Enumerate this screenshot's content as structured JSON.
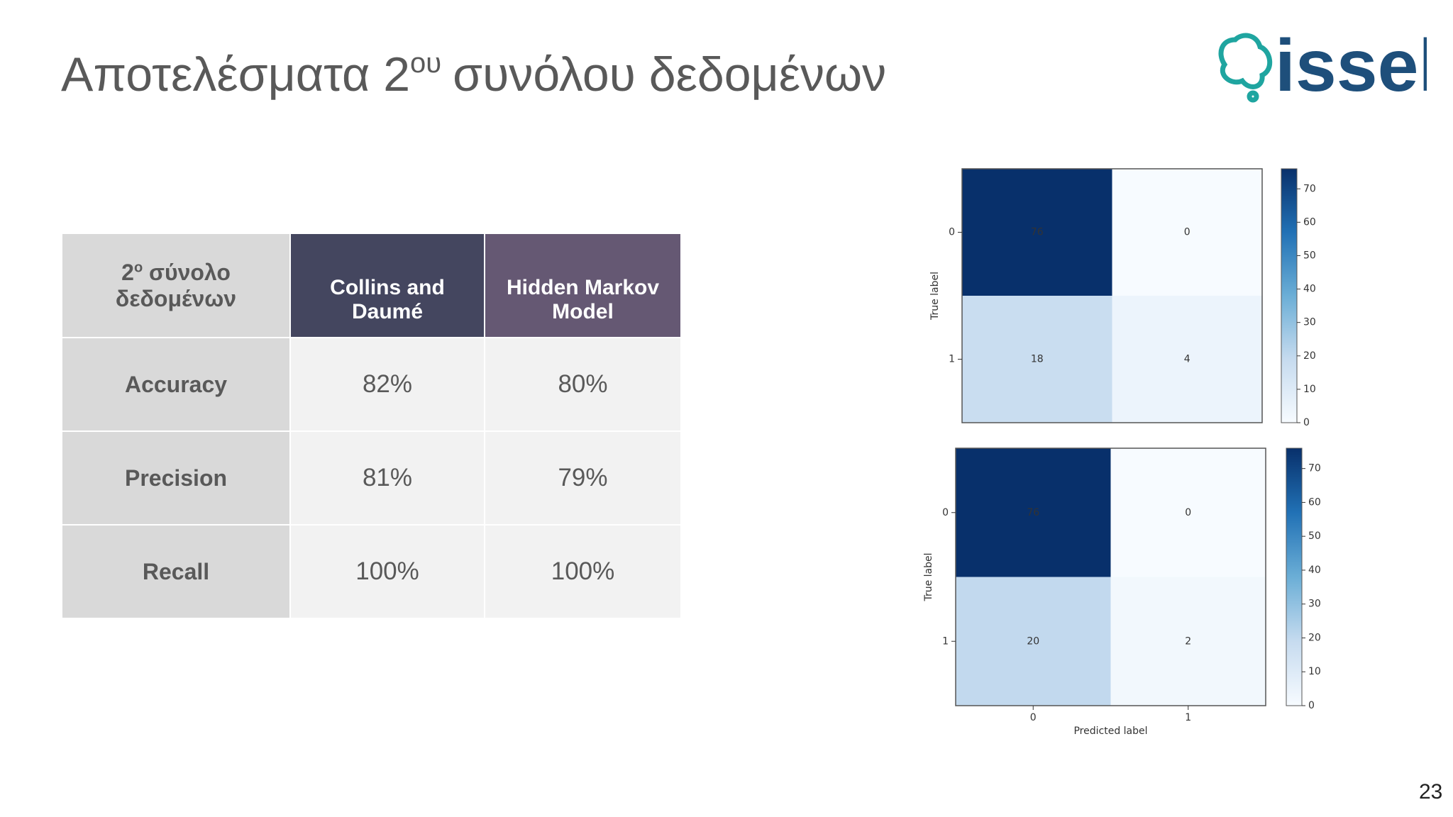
{
  "header": {
    "title_start": "Αποτελέσματα 2",
    "title_sup": "ου",
    "title_end": "συνόλου δεδομένων",
    "logo": "issel"
  },
  "table": {
    "corner": {
      "number": "2",
      "sup": "ο",
      "text": "σύνολο δεδομένων"
    },
    "columns": [
      "Collins and Daumé",
      "Hidden Markov Model"
    ],
    "rows": [
      [
        "Accuracy",
        "82%",
        "80%"
      ],
      [
        "Precision",
        "81%",
        "79%"
      ],
      [
        "Recall",
        "100%",
        "100%"
      ]
    ]
  },
  "matrices": [
    {
      "values": [
        [
          76,
          0
        ],
        [
          18,
          4
        ]
      ],
      "ylabel": "True label",
      "yticks": [
        0,
        1
      ],
      "colormap": "Blues",
      "clim": [
        0,
        76
      ],
      "cticks": [
        0,
        10,
        20,
        30,
        40,
        50,
        60,
        70
      ]
    },
    {
      "values": [
        [
          76,
          0
        ],
        [
          20,
          2
        ]
      ],
      "ylabel": "True label",
      "xlabel": "Predicted label",
      "xticks": [
        0,
        1
      ],
      "yticks": [
        0,
        1
      ],
      "colormap": "Blues",
      "clim": [
        0,
        76
      ],
      "cticks": [
        0,
        10,
        20,
        30,
        40,
        50,
        60,
        70
      ]
    }
  ],
  "page_number": "23"
}
